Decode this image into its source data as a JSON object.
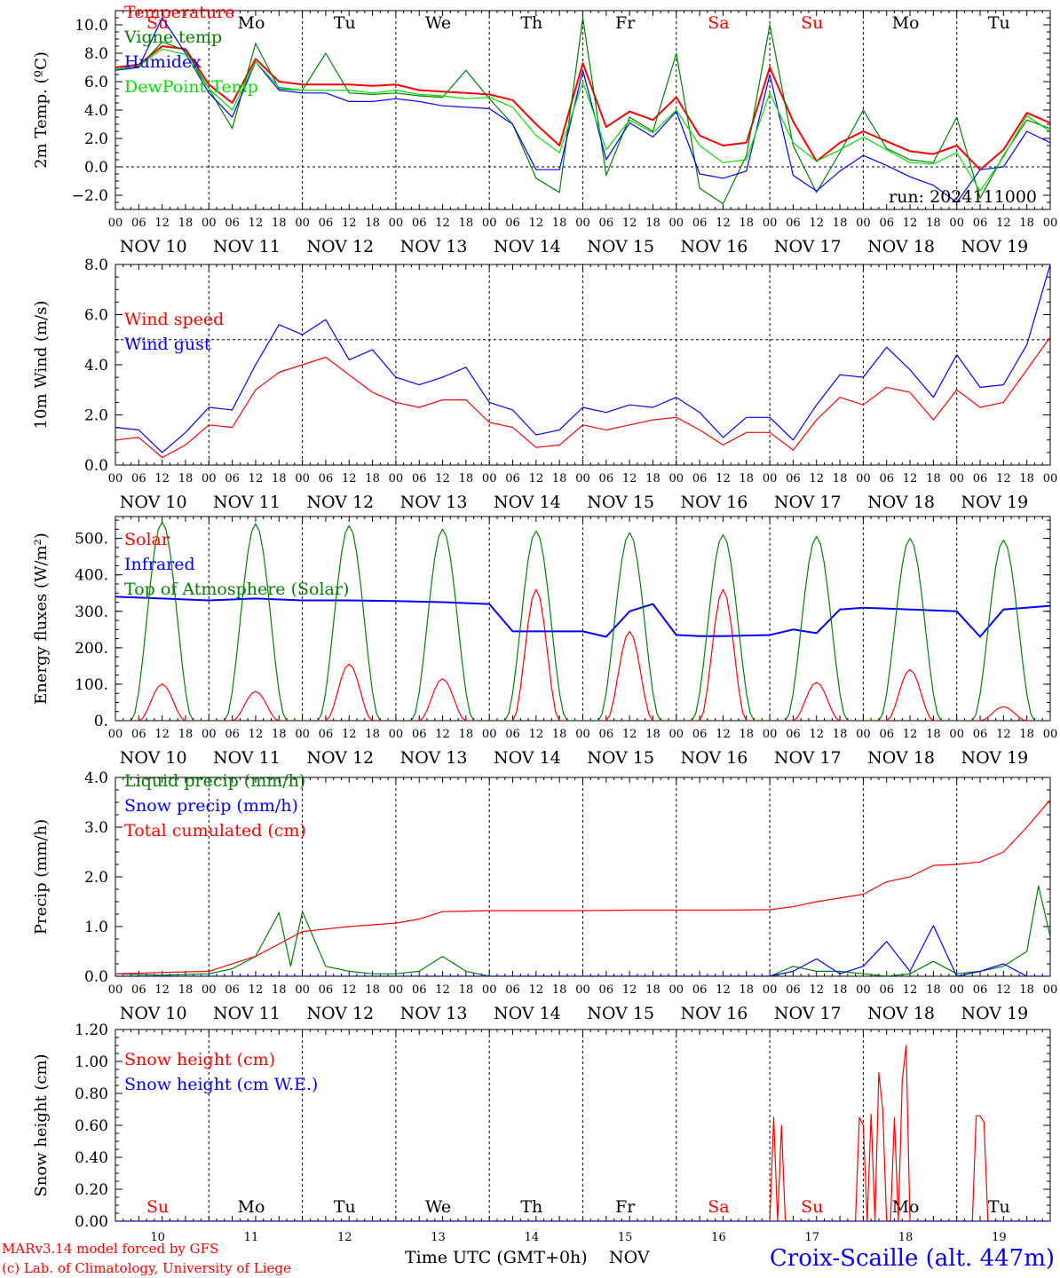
{
  "colors": {
    "red": "#ff0000",
    "green": "#008000",
    "blue": "#0000ff",
    "lime": "#00e000",
    "axis": "#000000"
  },
  "run_label": "run: 2024111000",
  "dates": [
    "NOV 10",
    "NOV 11",
    "NOV 12",
    "NOV 13",
    "NOV 14",
    "NOV 15",
    "NOV 16",
    "NOV 17",
    "NOV 18",
    "NOV 19"
  ],
  "hour_ticks": [
    "00",
    "06",
    "12",
    "18"
  ],
  "end_tick": "00",
  "weekdays": [
    {
      "label": "Su",
      "color": "red"
    },
    {
      "label": "Mo",
      "color": "black"
    },
    {
      "label": "Tu",
      "color": "black"
    },
    {
      "label": "We",
      "color": "black"
    },
    {
      "label": "Th",
      "color": "black"
    },
    {
      "label": "Fr",
      "color": "black"
    },
    {
      "label": "Sa",
      "color": "red"
    },
    {
      "label": "Su",
      "color": "red"
    },
    {
      "label": "Mo",
      "color": "black"
    },
    {
      "label": "Tu",
      "color": "black"
    }
  ],
  "bottom_days": [
    "10",
    "11",
    "12",
    "13",
    "14",
    "15",
    "16",
    "17",
    "18",
    "19"
  ],
  "footer": {
    "model": "MARv3.14 model forced by GFS",
    "credit": "(c) Lab. of Climatology, University of Liege",
    "time_label": "Time UTC (GMT+0h)",
    "month_label": "NOV",
    "station": "Croix-Scaille (alt. 447m)"
  },
  "chart_data": [
    {
      "type": "line",
      "ylabel": "2m Temp. (ºC)",
      "ylim": [
        -3,
        11
      ],
      "yticks": [
        10,
        8,
        6,
        4,
        2,
        0,
        -2
      ],
      "ytick_labels": [
        "10.0",
        "8.0",
        "6.0",
        "4.0",
        "2.0",
        "0.0",
        "−2.0"
      ],
      "ref_line": 0,
      "x_hours": [
        0,
        6,
        12,
        18,
        24,
        30,
        36,
        42,
        48,
        54,
        60,
        66,
        72,
        78,
        84,
        90,
        96,
        102,
        108,
        114,
        120,
        126,
        132,
        138,
        144,
        150,
        156,
        162,
        168,
        174,
        180,
        186,
        192,
        198,
        204,
        210,
        216,
        222,
        228,
        234,
        240
      ],
      "series": [
        {
          "name": "Temperature",
          "color": "red",
          "values": [
            7,
            7.2,
            8.5,
            8.3,
            5.8,
            4.5,
            7.6,
            6,
            5.8,
            5.8,
            5.8,
            5.7,
            5.8,
            5.4,
            5.3,
            5.2,
            5.1,
            4.7,
            3,
            1.5,
            7.3,
            2.8,
            3.9,
            3.3,
            4.9,
            2.2,
            1.5,
            1.7,
            7,
            3.2,
            0.4,
            1.7,
            2.5,
            1.8,
            1.1,
            0.9,
            1.5,
            -0.2,
            1.2,
            3.8,
            3.1
          ]
        },
        {
          "name": "Vigne temp",
          "color": "green",
          "values": [
            6.8,
            7,
            8.8,
            8.2,
            5.5,
            2.7,
            8.7,
            5.5,
            5.4,
            8,
            5.2,
            5.1,
            5.2,
            5,
            4.9,
            6.8,
            4.8,
            3,
            -0.8,
            -1.8,
            10.5,
            -0.6,
            3.5,
            2.5,
            8,
            -1.5,
            -2.6,
            0.8,
            10,
            1.5,
            -1.8,
            1,
            4,
            1.3,
            0.5,
            0.3,
            3.5,
            -2.2,
            0.8,
            3.3,
            2.7
          ]
        },
        {
          "name": "Humidex",
          "color": "blue",
          "values": [
            6.8,
            7,
            10.5,
            8,
            5.2,
            3.5,
            7.4,
            5.4,
            5.2,
            5.2,
            4.6,
            4.6,
            4.8,
            4.6,
            4.3,
            4.2,
            4.1,
            3,
            -0.2,
            -0.2,
            6.8,
            0.5,
            3.1,
            2.1,
            3.9,
            -0.5,
            -0.8,
            -0.3,
            6.5,
            -0.6,
            -1.7,
            -0.3,
            0.8,
            0.1,
            -0.7,
            -1.3,
            -2.5,
            -0.2,
            0,
            2.5,
            1.7
          ]
        },
        {
          "name": "DewPoint Temp",
          "color": "lime",
          "values": [
            6.9,
            7.1,
            8.3,
            7.9,
            5.5,
            4,
            7.4,
            5.6,
            5.4,
            5.4,
            5.4,
            5.2,
            5.4,
            5.1,
            5,
            4.8,
            4.9,
            4.2,
            2.2,
            1,
            6,
            1.2,
            3.3,
            2.4,
            4,
            1.5,
            0.3,
            0.5,
            5.2,
            1.7,
            0.4,
            1.2,
            2.1,
            1.2,
            0.3,
            0.2,
            1,
            -1.7,
            0.7,
            3.6,
            2.5
          ]
        }
      ]
    },
    {
      "type": "line",
      "ylabel": "10m Wind (m/s)",
      "ylim": [
        0,
        8
      ],
      "yticks": [
        8,
        6,
        4,
        2,
        0
      ],
      "ytick_labels": [
        "8.0",
        "6.0",
        "4.0",
        "2.0",
        "0.0"
      ],
      "ref_line": 5,
      "x_hours": [
        0,
        6,
        12,
        18,
        24,
        30,
        36,
        42,
        48,
        54,
        60,
        66,
        72,
        78,
        84,
        90,
        96,
        102,
        108,
        114,
        120,
        126,
        132,
        138,
        144,
        150,
        156,
        162,
        168,
        174,
        180,
        186,
        192,
        198,
        204,
        210,
        216,
        222,
        228,
        234,
        240
      ],
      "series": [
        {
          "name": "Wind speed",
          "color": "red",
          "values": [
            1,
            1.1,
            0.3,
            0.8,
            1.6,
            1.5,
            3,
            3.7,
            4,
            4.3,
            3.6,
            2.9,
            2.5,
            2.3,
            2.6,
            2.6,
            1.7,
            1.5,
            0.7,
            0.8,
            1.6,
            1.4,
            1.6,
            1.8,
            1.9,
            1.4,
            0.8,
            1.3,
            1.3,
            0.6,
            1.8,
            2.7,
            2.4,
            3.1,
            2.9,
            1.8,
            3,
            2.3,
            2.5,
            3.8,
            5.1
          ]
        },
        {
          "name": "Wind gust",
          "color": "blue",
          "values": [
            1.5,
            1.4,
            0.5,
            1.3,
            2.3,
            2.2,
            4,
            5.6,
            5.2,
            5.8,
            4.2,
            4.6,
            3.5,
            3.2,
            3.5,
            3.9,
            2.5,
            2.2,
            1.2,
            1.4,
            2.3,
            2.1,
            2.4,
            2.3,
            2.7,
            2.1,
            1.1,
            1.9,
            1.9,
            1,
            2.4,
            3.6,
            3.5,
            4.7,
            3.8,
            2.7,
            4.4,
            3.1,
            3.2,
            4.8,
            8
          ]
        }
      ]
    },
    {
      "type": "line",
      "ylabel": "Energy fluxes (W/m²)",
      "ylim": [
        0,
        560
      ],
      "yticks": [
        500,
        400,
        300,
        200,
        100,
        0
      ],
      "ytick_labels": [
        "500.",
        "400.",
        "300.",
        "200.",
        "100.",
        "0."
      ],
      "solar_peaks_w_m2": [
        100,
        80,
        155,
        115,
        360,
        245,
        360,
        105,
        140,
        38
      ],
      "toa_peaks_w_m2": [
        545,
        540,
        535,
        525,
        520,
        515,
        510,
        505,
        500,
        495
      ],
      "series": [
        {
          "name": "Solar",
          "color": "red"
        },
        {
          "name": "Infrared",
          "color": "blue",
          "x_hours": [
            0,
            12,
            24,
            36,
            48,
            60,
            72,
            84,
            96,
            102,
            108,
            120,
            126,
            132,
            138,
            144,
            150,
            156,
            168,
            174,
            180,
            186,
            192,
            204,
            216,
            222,
            228,
            240
          ],
          "values": [
            340,
            335,
            330,
            335,
            330,
            330,
            328,
            325,
            320,
            245,
            245,
            245,
            230,
            300,
            320,
            235,
            232,
            232,
            235,
            250,
            240,
            305,
            310,
            305,
            300,
            230,
            305,
            315
          ]
        },
        {
          "name": "Top of Atmosphere (Solar)",
          "color": "green"
        }
      ]
    },
    {
      "type": "line",
      "ylabel": "Precip (mm/h)",
      "ylim": [
        0,
        4
      ],
      "yticks": [
        4,
        3,
        2,
        1,
        0
      ],
      "ytick_labels": [
        "4.0",
        "3.0",
        "2.0",
        "1.0",
        "0.0"
      ],
      "series": [
        {
          "name": "Liquid precip (mm/h)",
          "color": "green",
          "x_hours": [
            0,
            12,
            24,
            30,
            36,
            42,
            45,
            48,
            54,
            60,
            66,
            72,
            78,
            84,
            90,
            96,
            168,
            174,
            180,
            186,
            192,
            198,
            204,
            210,
            216,
            222,
            228,
            234,
            237,
            240
          ],
          "values": [
            0.05,
            0.02,
            0.05,
            0.15,
            0.4,
            1.28,
            0.2,
            1.3,
            0.2,
            0.1,
            0.05,
            0.05,
            0.1,
            0.4,
            0.1,
            0,
            0,
            0.2,
            0.1,
            0.1,
            0.05,
            0,
            0.05,
            0.3,
            0.05,
            0.1,
            0.2,
            0.5,
            1.82,
            0.8
          ]
        },
        {
          "name": "Snow precip (mm/h)",
          "color": "blue",
          "x_hours": [
            0,
            168,
            174,
            180,
            186,
            192,
            198,
            204,
            210,
            216,
            222,
            228,
            234,
            240
          ],
          "values": [
            0,
            0,
            0.1,
            0.35,
            0.05,
            0.2,
            0.7,
            0.1,
            1.02,
            0,
            0.1,
            0.25,
            0,
            0
          ]
        },
        {
          "name": "Total cumulated (cm)",
          "color": "red",
          "x_hours": [
            0,
            24,
            36,
            48,
            60,
            72,
            78,
            84,
            96,
            108,
            120,
            132,
            144,
            156,
            168,
            174,
            180,
            192,
            198,
            204,
            210,
            216,
            222,
            228,
            234,
            240
          ],
          "values": [
            0.05,
            0.1,
            0.4,
            0.9,
            1,
            1.07,
            1.15,
            1.3,
            1.32,
            1.32,
            1.32,
            1.33,
            1.33,
            1.33,
            1.34,
            1.4,
            1.5,
            1.65,
            1.9,
            2,
            2.23,
            2.25,
            2.3,
            2.5,
            3,
            3.55
          ]
        }
      ]
    },
    {
      "type": "line",
      "ylabel": "Snow height (cm)",
      "ylim": [
        0,
        1.2
      ],
      "yticks": [
        1.2,
        1,
        0.8,
        0.6,
        0.4,
        0.2,
        0
      ],
      "ytick_labels": [
        "1.20",
        "1.00",
        "0.80",
        "0.60",
        "0.40",
        "0.20",
        "0.00"
      ],
      "series": [
        {
          "name": "Snow height (cm)",
          "color": "red",
          "x_hours": [
            0,
            168,
            169,
            170,
            171,
            172,
            173,
            174,
            175,
            190,
            191,
            192,
            193,
            194,
            195,
            196,
            197,
            198,
            199,
            200,
            201,
            202,
            203,
            204,
            205,
            206,
            207,
            208,
            220,
            221,
            222,
            223,
            224,
            225,
            240
          ],
          "values": [
            0,
            0,
            0.65,
            0,
            0.6,
            0,
            0,
            0,
            0,
            0,
            0.65,
            0.6,
            0,
            0.67,
            0,
            0.93,
            0.7,
            0,
            0,
            0.65,
            0,
            0.88,
            1.1,
            0,
            0,
            0,
            0,
            0,
            0,
            0.66,
            0.66,
            0.62,
            0,
            0,
            0
          ]
        },
        {
          "name": "Snow height (cm W.E.)",
          "color": "blue",
          "x_hours": [
            0,
            240
          ],
          "values": [
            0,
            0
          ]
        }
      ]
    }
  ]
}
